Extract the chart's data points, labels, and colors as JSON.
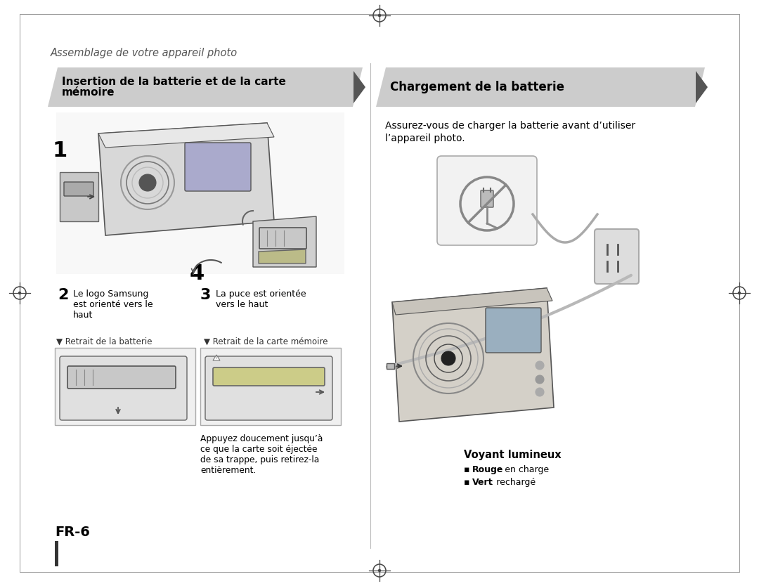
{
  "bg_color": "#ffffff",
  "page_title": "Assemblage de votre appareil photo",
  "header1_text_line1": "Insertion de la batterie et de la carte",
  "header1_text_line2": "mémoire",
  "header2_text": "Chargement de la batterie",
  "header_bg": "#cccccc",
  "body_text1_line1": "Assurez-vous de charger la batterie avant d’utiliser",
  "body_text1_line2": "l’appareil photo.",
  "label2_text": "Le logo Samsung",
  "label2_text2": "est orienté vers le",
  "label2_text3": "haut",
  "label3_text": "La puce est orientée",
  "label3_text2": "vers le haut",
  "num1": "1",
  "num2": "2",
  "num3": "3",
  "num4": "4",
  "retrait_batterie": "▼ Retrait de la batterie",
  "retrait_carte": "▼ Retrait de la carte mémoire",
  "appuyez_text": "Appuyez doucement jusqu’à\nce que la carte soit éjectée\nde sa trappe, puis retirez-la\nentièrement.",
  "voyant_title": "Voyant lumineux",
  "bullet1_bold": "Rouge",
  "bullet1_rest": " : en charge",
  "bullet2_bold": "Vert",
  "bullet2_rest": " : rechargé",
  "fr6": "FR-6",
  "compass_color": "#444444",
  "header_text_color": "#000000",
  "divider_color": "#bbbbbb",
  "image_border_color": "#999999",
  "image_bg": "#eeeeee",
  "gray_light": "#e8e8e8",
  "gray_med": "#cccccc",
  "gray_dark": "#888888",
  "black": "#000000",
  "white": "#ffffff"
}
